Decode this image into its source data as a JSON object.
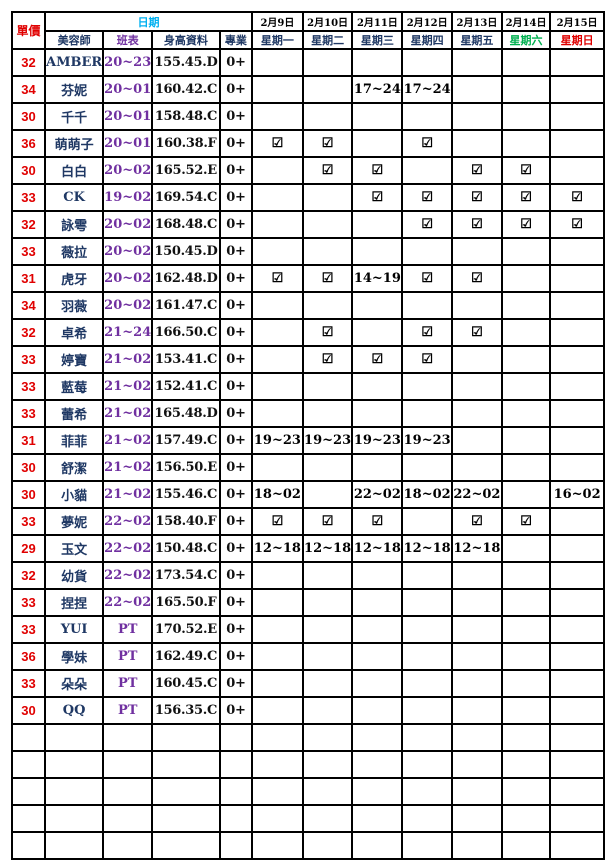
{
  "colors": {
    "price": "#e00000",
    "name": "#1f3864",
    "class": "#7030a0",
    "date_header": "#00b0f0",
    "saturday": "#00b050",
    "sunday": "#e00000"
  },
  "header": {
    "price": "單價",
    "date": "日期",
    "columns": [
      "美容師",
      "班表",
      "身高資料",
      "專業"
    ],
    "dates": [
      "2月9日",
      "2月10日",
      "2月11日",
      "2月12日",
      "2月13日",
      "2月14日",
      "2月15日"
    ],
    "weekdays": [
      "星期一",
      "星期二",
      "星期三",
      "星期四",
      "星期五",
      "星期六",
      "星期日"
    ]
  },
  "check_icon": "☑",
  "rows": [
    {
      "price": "32",
      "name": "AMBER",
      "shift": "20~23",
      "height": "155.45.D",
      "pro": "0+",
      "days": [
        "",
        "",
        "",
        "",
        "",
        "",
        ""
      ]
    },
    {
      "price": "34",
      "name": "芬妮",
      "shift": "20~01",
      "height": "160.42.C",
      "pro": "0+",
      "days": [
        "",
        "",
        "17~24",
        "17~24",
        "",
        "",
        ""
      ]
    },
    {
      "price": "30",
      "name": "千千",
      "shift": "20~01",
      "height": "158.48.C",
      "pro": "0+",
      "days": [
        "",
        "",
        "",
        "",
        "",
        "",
        ""
      ]
    },
    {
      "price": "36",
      "name": "萌萌子",
      "shift": "20~01",
      "height": "160.38.F",
      "pro": "0+",
      "days": [
        "☑",
        "☑",
        "",
        "☑",
        "",
        "",
        ""
      ]
    },
    {
      "price": "30",
      "name": "白白",
      "shift": "20~02",
      "height": "165.52.E",
      "pro": "0+",
      "days": [
        "",
        "☑",
        "☑",
        "",
        "☑",
        "☑",
        ""
      ]
    },
    {
      "price": "33",
      "name": "CK",
      "shift": "19~02",
      "height": "169.54.C",
      "pro": "0+",
      "days": [
        "",
        "",
        "☑",
        "☑",
        "☑",
        "☑",
        "☑"
      ]
    },
    {
      "price": "32",
      "name": "詠雩",
      "shift": "20~02",
      "height": "168.48.C",
      "pro": "0+",
      "days": [
        "",
        "",
        "",
        "☑",
        "☑",
        "☑",
        "☑"
      ]
    },
    {
      "price": "33",
      "name": "薇拉",
      "shift": "20~02",
      "height": "150.45.D",
      "pro": "0+",
      "days": [
        "",
        "",
        "",
        "",
        "",
        "",
        ""
      ]
    },
    {
      "price": "31",
      "name": "虎牙",
      "shift": "20~02",
      "height": "162.48.D",
      "pro": "0+",
      "days": [
        "☑",
        "☑",
        "14~19",
        "☑",
        "☑",
        "",
        ""
      ]
    },
    {
      "price": "34",
      "name": "羽薇",
      "shift": "20~02",
      "height": "161.47.C",
      "pro": "0+",
      "days": [
        "",
        "",
        "",
        "",
        "",
        "",
        ""
      ]
    },
    {
      "price": "32",
      "name": "卓希",
      "shift": "21~24",
      "height": "166.50.C",
      "pro": "0+",
      "days": [
        "",
        "☑",
        "",
        "☑",
        "☑",
        "",
        ""
      ]
    },
    {
      "price": "33",
      "name": "婷寶",
      "shift": "21~02",
      "height": "153.41.C",
      "pro": "0+",
      "days": [
        "",
        "☑",
        "☑",
        "☑",
        "",
        "",
        ""
      ]
    },
    {
      "price": "33",
      "name": "藍莓",
      "shift": "21~02",
      "height": "152.41.C",
      "pro": "0+",
      "days": [
        "",
        "",
        "",
        "",
        "",
        "",
        ""
      ]
    },
    {
      "price": "33",
      "name": "蕾希",
      "shift": "21~02",
      "height": "165.48.D",
      "pro": "0+",
      "days": [
        "",
        "",
        "",
        "",
        "",
        "",
        ""
      ]
    },
    {
      "price": "31",
      "name": "菲菲",
      "shift": "21~02",
      "height": "157.49.C",
      "pro": "0+",
      "days": [
        "19~23",
        "19~23",
        "19~23",
        "19~23",
        "",
        "",
        ""
      ]
    },
    {
      "price": "30",
      "name": "舒潔",
      "shift": "21~02",
      "height": "156.50.E",
      "pro": "0+",
      "days": [
        "",
        "",
        "",
        "",
        "",
        "",
        ""
      ]
    },
    {
      "price": "30",
      "name": "小貓",
      "shift": "21~02",
      "height": "155.46.C",
      "pro": "0+",
      "days": [
        "18~02",
        "",
        "22~02",
        "18~02",
        "22~02",
        "",
        "16~02"
      ]
    },
    {
      "price": "33",
      "name": "夢妮",
      "shift": "22~02",
      "height": "158.40.F",
      "pro": "0+",
      "days": [
        "☑",
        "☑",
        "☑",
        "",
        "☑",
        "☑",
        ""
      ]
    },
    {
      "price": "29",
      "name": "玉文",
      "shift": "22~02",
      "height": "150.48.C",
      "pro": "0+",
      "days": [
        "12~18",
        "12~18",
        "12~18",
        "12~18",
        "12~18",
        "",
        ""
      ]
    },
    {
      "price": "32",
      "name": "幼貨",
      "shift": "22~02",
      "height": "173.54.C",
      "pro": "0+",
      "days": [
        "",
        "",
        "",
        "",
        "",
        "",
        ""
      ]
    },
    {
      "price": "33",
      "name": "捏捏",
      "shift": "22~02",
      "height": "165.50.F",
      "pro": "0+",
      "days": [
        "",
        "",
        "",
        "",
        "",
        "",
        ""
      ]
    },
    {
      "price": "33",
      "name": "YUI",
      "shift": "PT",
      "height": "170.52.E",
      "pro": "0+",
      "days": [
        "",
        "",
        "",
        "",
        "",
        "",
        ""
      ]
    },
    {
      "price": "36",
      "name": "學妹",
      "shift": "PT",
      "height": "162.49.C",
      "pro": "0+",
      "days": [
        "",
        "",
        "",
        "",
        "",
        "",
        ""
      ]
    },
    {
      "price": "33",
      "name": "朵朵",
      "shift": "PT",
      "height": "160.45.C",
      "pro": "0+",
      "days": [
        "",
        "",
        "",
        "",
        "",
        "",
        ""
      ]
    },
    {
      "price": "30",
      "name": "QQ",
      "shift": "PT",
      "height": "156.35.C",
      "pro": "0+",
      "days": [
        "",
        "",
        "",
        "",
        "",
        "",
        ""
      ]
    }
  ],
  "empty_rows": 5
}
